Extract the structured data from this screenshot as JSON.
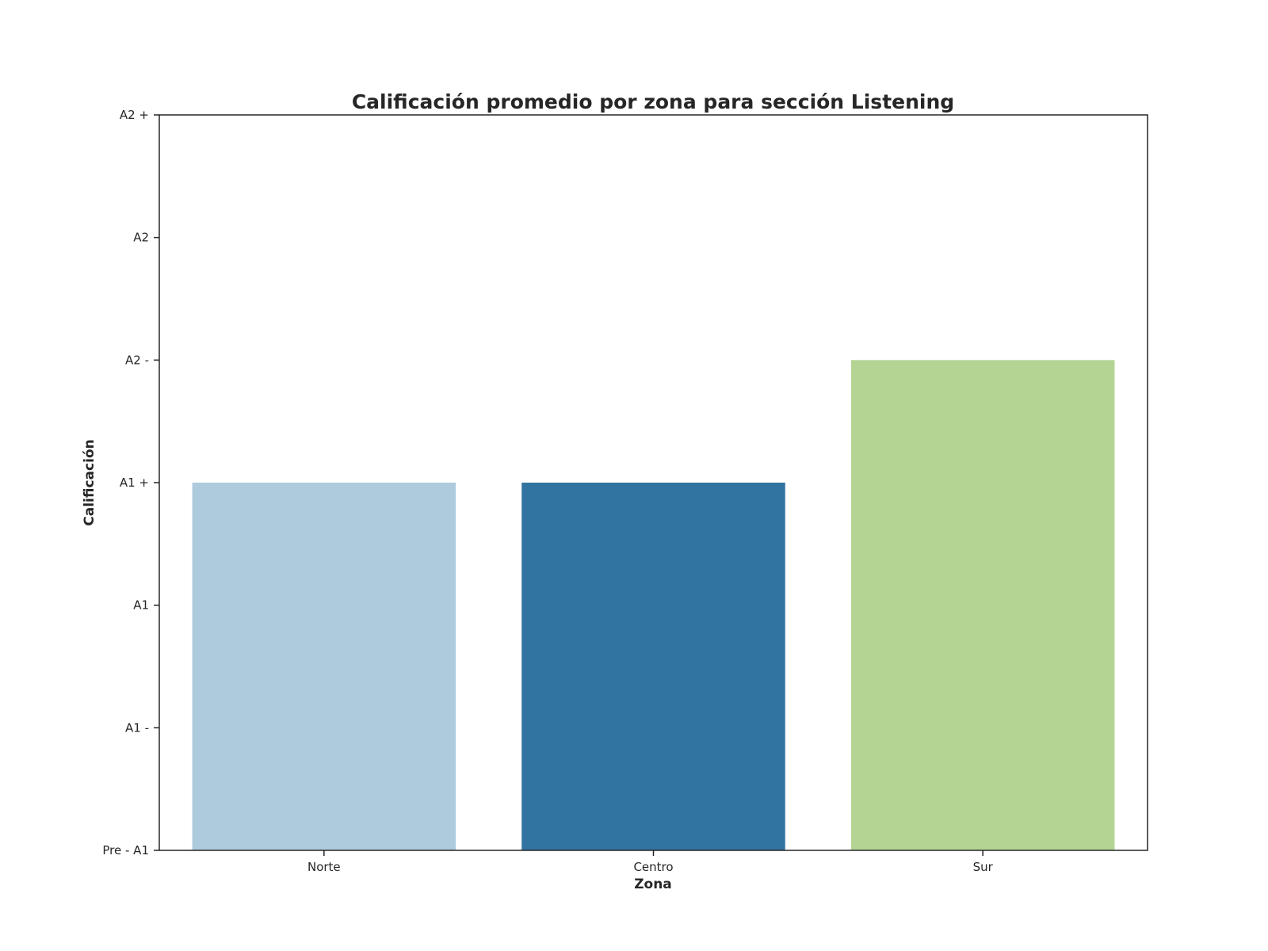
{
  "chart_data": {
    "type": "bar",
    "title": "Calificación promedio por zona para sección Listening",
    "xlabel": "Zona",
    "ylabel": "Calificación",
    "categories": [
      "Norte",
      "Centro",
      "Sur"
    ],
    "values": [
      3,
      3,
      4
    ],
    "colors": [
      "#aecbdd",
      "#3274a1",
      "#b4d494"
    ],
    "ylim": [
      0,
      6
    ],
    "yticks": [
      {
        "value": 0,
        "label": "Pre - A1"
      },
      {
        "value": 1,
        "label": "A1 -"
      },
      {
        "value": 2,
        "label": "A1"
      },
      {
        "value": 3,
        "label": "A1 +"
      },
      {
        "value": 4,
        "label": "A2 -"
      },
      {
        "value": 5,
        "label": "A2"
      },
      {
        "value": 6,
        "label": "A2 +"
      }
    ],
    "grid": false,
    "legend": "none"
  }
}
